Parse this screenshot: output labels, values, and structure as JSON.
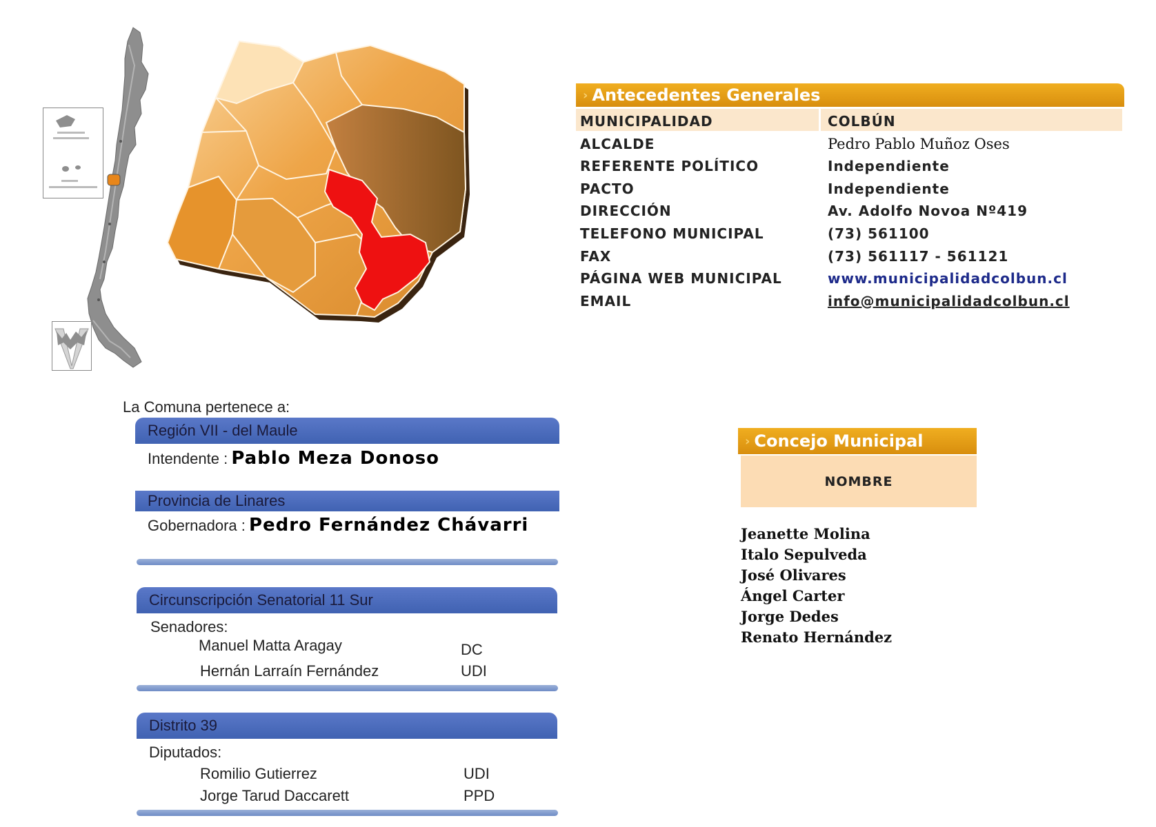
{
  "antecedentes": {
    "title": "Antecedentes Generales",
    "rows": [
      {
        "label": "MUNICIPALIDAD",
        "value": "COLBÚN"
      },
      {
        "label": "ALCALDE",
        "value": "Pedro Pablo Muñoz Oses"
      },
      {
        "label": "REFERENTE POLÍTICO",
        "value": "Independiente"
      },
      {
        "label": "PACTO",
        "value": "Independiente"
      },
      {
        "label": "DIRECCIÓN",
        "value": "Av. Adolfo Novoa Nº419"
      },
      {
        "label": "TELEFONO MUNICIPAL",
        "value": "(73) 561100"
      },
      {
        "label": "FAX",
        "value": "(73) 561117 - 561121"
      },
      {
        "label": "PÁGINA WEB MUNICIPAL",
        "value": "www.municipalidadcolbun.cl"
      },
      {
        "label": "EMAIL",
        "value": "info@municipalidadcolbun.cl"
      }
    ]
  },
  "comuna": {
    "intro": "La Comuna pertenece a:",
    "region": {
      "title": "Región VII - del Maule",
      "label": "Intendente :",
      "name": "Pablo Meza Donoso"
    },
    "provincia": {
      "title": "Provincia de Linares",
      "label": "Gobernadora :",
      "name": "Pedro Fernández Chávarri"
    },
    "circunscripcion": {
      "title": "Circunscripción Senatorial 11 Sur",
      "label": "Senadores:",
      "members": [
        {
          "name": "Manuel Matta Aragay",
          "party": "DC"
        },
        {
          "name": "Hernán Larraín Fernández",
          "party": "UDI"
        }
      ]
    },
    "distrito": {
      "title": "Distrito 39",
      "label": "Diputados:",
      "members": [
        {
          "name": "Romilio Gutierrez",
          "party": "UDI"
        },
        {
          "name": "Jorge Tarud Daccarett",
          "party": "PPD"
        }
      ]
    }
  },
  "concejo": {
    "title": "Concejo Municipal",
    "column": "NOMBRE",
    "members": [
      "Jeanette Molina",
      "Italo Sepulveda",
      "José Olivares",
      "Ángel Carter",
      "Jorge Dedes",
      "Renato Hernández"
    ]
  },
  "colors": {
    "orange_header": "#e39a12",
    "highlight_row": "#fbe7cc",
    "blue_bar": "#4a6abc",
    "commune_red": "#ee1111"
  }
}
